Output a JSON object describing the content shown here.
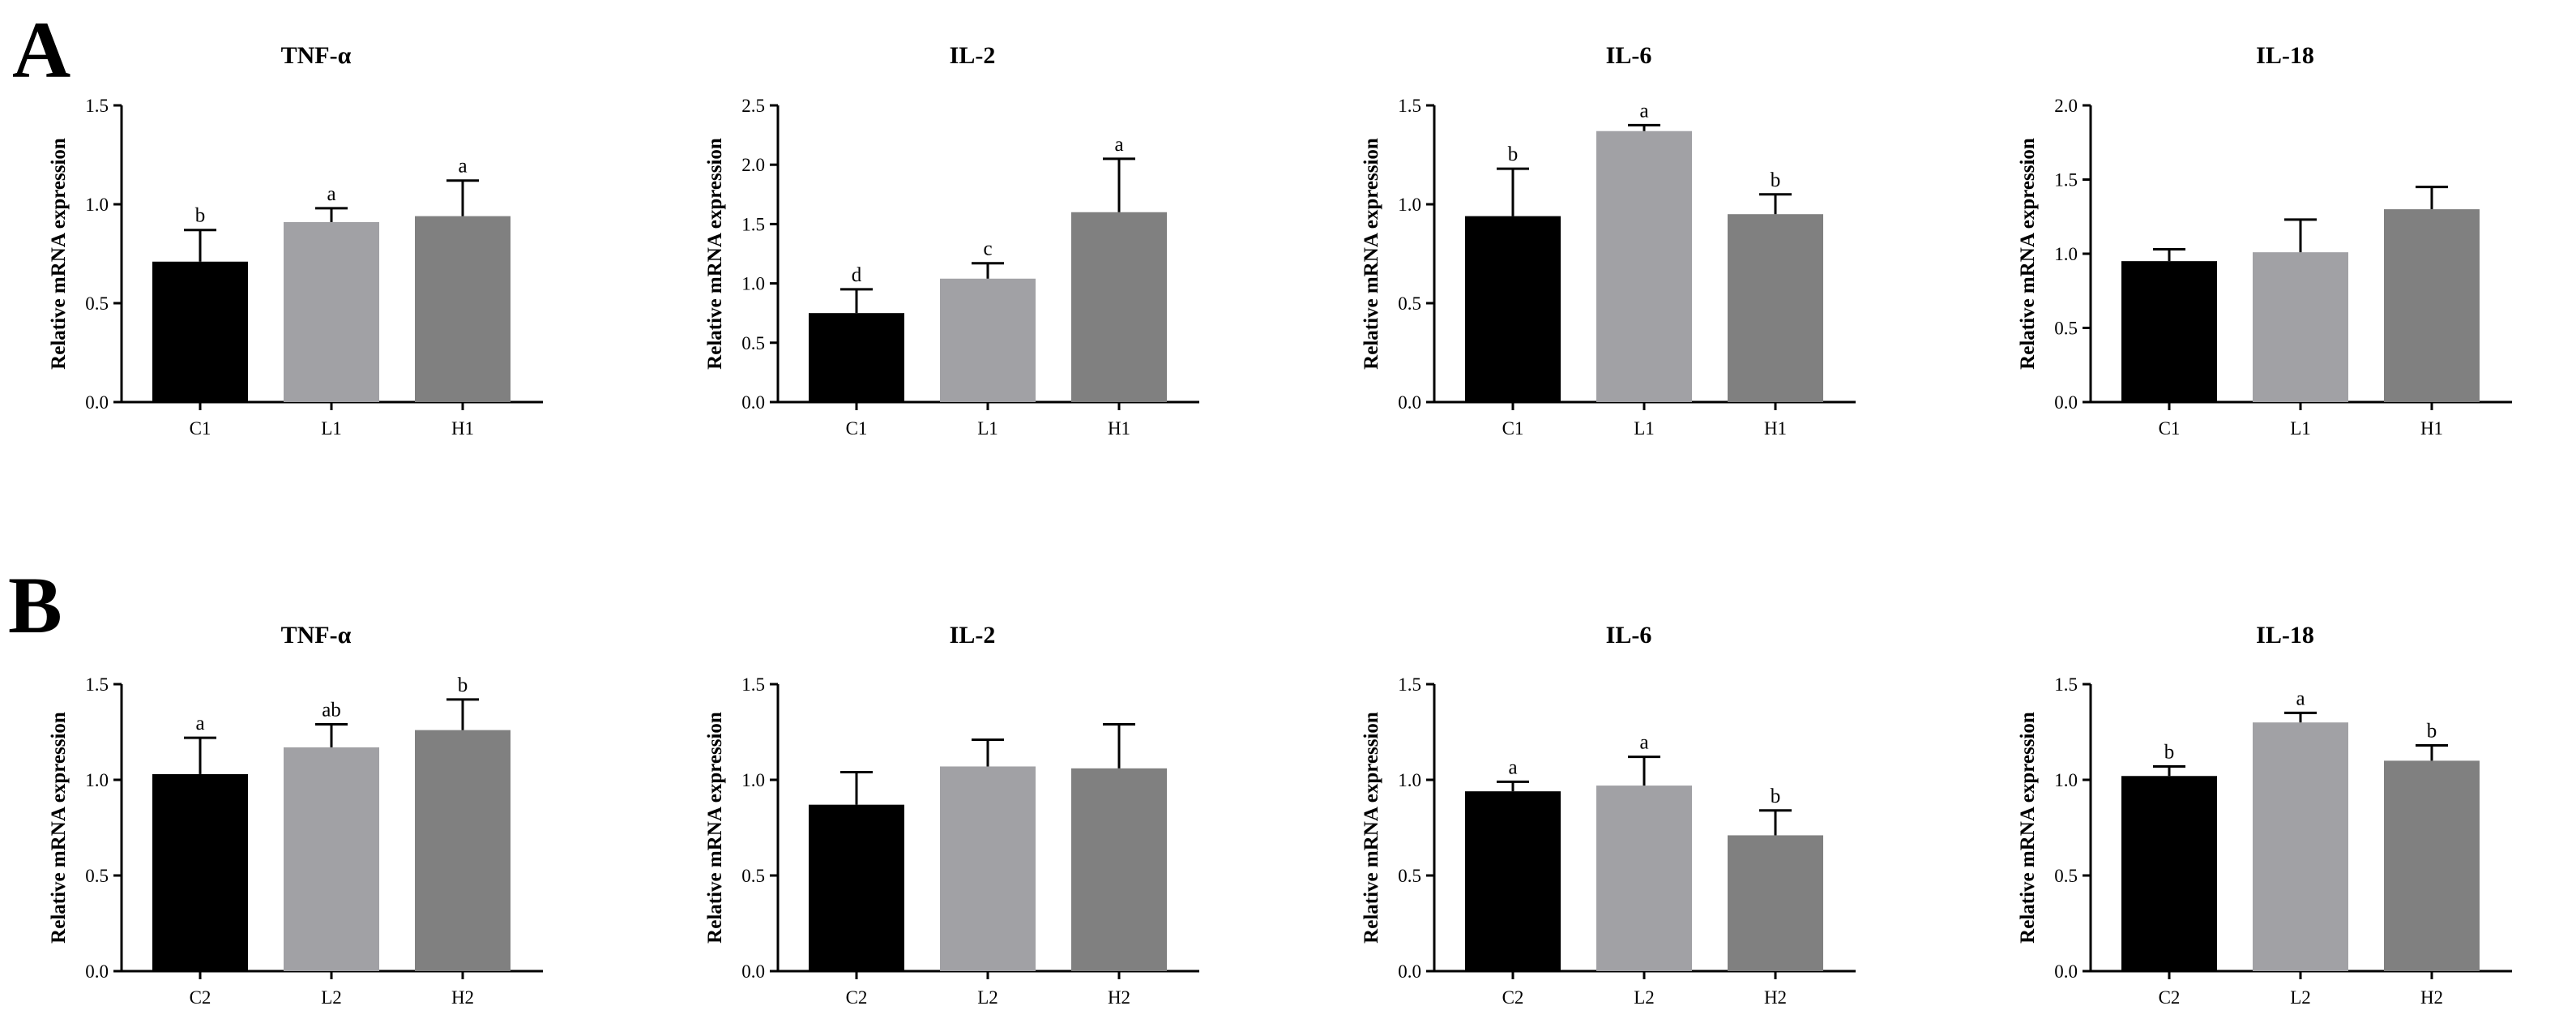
{
  "panels": [
    {
      "letter": "A",
      "row": 0
    },
    {
      "letter": "B",
      "row": 1
    }
  ],
  "colors": {
    "C": "#000000",
    "L": "#a1a1a5",
    "H": "#808080",
    "axis": "#000000"
  },
  "chart_data": [
    {
      "type": "bar",
      "panel": "A",
      "col": 0,
      "title": "TNF-α",
      "ylabel": "Relative mRNA expression",
      "categories": [
        "C1",
        "L1",
        "H1"
      ],
      "values": [
        0.71,
        0.91,
        0.94
      ],
      "errors": [
        0.16,
        0.07,
        0.18
      ],
      "sig": [
        "b",
        "a",
        "a"
      ],
      "ylim": [
        0,
        1.5
      ],
      "yticks": [
        "0.0",
        "0.5",
        "1.0",
        "1.5"
      ],
      "ytick_values": [
        0,
        0.5,
        1.0,
        1.5
      ]
    },
    {
      "type": "bar",
      "panel": "A",
      "col": 1,
      "title": "IL-2",
      "ylabel": "Relative mRNA expression",
      "categories": [
        "C1",
        "L1",
        "H1"
      ],
      "values": [
        0.75,
        1.04,
        1.6
      ],
      "errors": [
        0.2,
        0.13,
        0.45
      ],
      "sig": [
        "d",
        "c",
        "a"
      ],
      "ylim": [
        0,
        2.5
      ],
      "yticks": [
        "0.0",
        "0.5",
        "1.0",
        "1.5",
        "2.0",
        "2.5"
      ],
      "ytick_values": [
        0,
        0.5,
        1.0,
        1.5,
        2.0,
        2.5
      ]
    },
    {
      "type": "bar",
      "panel": "A",
      "col": 2,
      "title": "IL-6",
      "ylabel": "Relative mRNA expression",
      "categories": [
        "C1",
        "L1",
        "H1"
      ],
      "values": [
        0.94,
        1.37,
        0.95
      ],
      "errors": [
        0.24,
        0.03,
        0.1
      ],
      "sig": [
        "b",
        "a",
        "b"
      ],
      "ylim": [
        0,
        1.5
      ],
      "yticks": [
        "0.0",
        "0.5",
        "1.0",
        "1.5"
      ],
      "ytick_values": [
        0,
        0.5,
        1.0,
        1.5
      ]
    },
    {
      "type": "bar",
      "panel": "A",
      "col": 3,
      "title": "IL-18",
      "ylabel": "Relative mRNA expression",
      "categories": [
        "C1",
        "L1",
        "H1"
      ],
      "values": [
        0.95,
        1.01,
        1.3
      ],
      "errors": [
        0.08,
        0.22,
        0.15
      ],
      "sig": [
        "",
        "",
        ""
      ],
      "ylim": [
        0,
        2.0
      ],
      "yticks": [
        "0.0",
        "0.5",
        "1.0",
        "1.5",
        "2.0"
      ],
      "ytick_values": [
        0,
        0.5,
        1.0,
        1.5,
        2.0
      ]
    },
    {
      "type": "bar",
      "panel": "B",
      "col": 0,
      "title": "TNF-α",
      "ylabel": "Relative mRNA expression",
      "categories": [
        "C2",
        "L2",
        "H2"
      ],
      "values": [
        1.03,
        1.17,
        1.26
      ],
      "errors": [
        0.19,
        0.12,
        0.16
      ],
      "sig": [
        "a",
        "ab",
        "b"
      ],
      "ylim": [
        0,
        1.5
      ],
      "yticks": [
        "0.0",
        "0.5",
        "1.0",
        "1.5"
      ],
      "ytick_values": [
        0,
        0.5,
        1.0,
        1.5
      ]
    },
    {
      "type": "bar",
      "panel": "B",
      "col": 1,
      "title": "IL-2",
      "ylabel": "Relative mRNA expression",
      "categories": [
        "C2",
        "L2",
        "H2"
      ],
      "values": [
        0.87,
        1.07,
        1.06
      ],
      "errors": [
        0.17,
        0.14,
        0.23
      ],
      "sig": [
        "",
        "",
        ""
      ],
      "ylim": [
        0,
        1.5
      ],
      "yticks": [
        "0.0",
        "0.5",
        "1.0",
        "1.5"
      ],
      "ytick_values": [
        0,
        0.5,
        1.0,
        1.5
      ]
    },
    {
      "type": "bar",
      "panel": "B",
      "col": 2,
      "title": "IL-6",
      "ylabel": "Relative mRNA expression",
      "categories": [
        "C2",
        "L2",
        "H2"
      ],
      "values": [
        0.94,
        0.97,
        0.71
      ],
      "errors": [
        0.05,
        0.15,
        0.13
      ],
      "sig": [
        "a",
        "a",
        "b"
      ],
      "ylim": [
        0,
        1.5
      ],
      "yticks": [
        "0.0",
        "0.5",
        "1.0",
        "1.5"
      ],
      "ytick_values": [
        0,
        0.5,
        1.0,
        1.5
      ]
    },
    {
      "type": "bar",
      "panel": "B",
      "col": 3,
      "title": "IL-18",
      "ylabel": "Relative mRNA expression",
      "categories": [
        "C2",
        "L2",
        "H2"
      ],
      "values": [
        1.02,
        1.3,
        1.1
      ],
      "errors": [
        0.05,
        0.05,
        0.08
      ],
      "sig": [
        "b",
        "a",
        "b"
      ],
      "ylim": [
        0,
        1.5
      ],
      "yticks": [
        "0.0",
        "0.5",
        "1.0",
        "1.5"
      ],
      "ytick_values": [
        0,
        0.5,
        1.0,
        1.5
      ]
    }
  ]
}
